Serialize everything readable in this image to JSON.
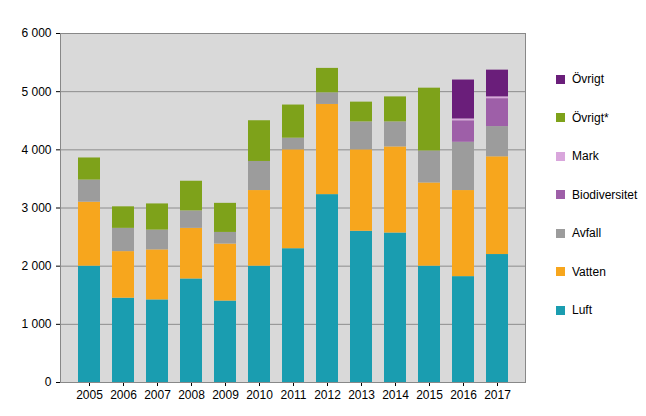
{
  "chart_data": {
    "type": "bar",
    "stacked": true,
    "grid": true,
    "legend": "right",
    "categories": [
      "2005",
      "2006",
      "2007",
      "2008",
      "2009",
      "2010",
      "2011",
      "2012",
      "2013",
      "2014",
      "2015",
      "2016",
      "2017"
    ],
    "series": [
      {
        "name": "Luft",
        "color": "#1a9db0",
        "values": [
          2000,
          1450,
          1420,
          1780,
          1400,
          2000,
          2300,
          3230,
          2600,
          2570,
          2000,
          1820,
          2200
        ]
      },
      {
        "name": "Vatten",
        "color": "#f7a61d",
        "values": [
          1100,
          800,
          860,
          870,
          980,
          1300,
          1700,
          1550,
          1400,
          1480,
          1430,
          1480,
          1680
        ]
      },
      {
        "name": "Avfall",
        "color": "#9c9c9c",
        "values": [
          380,
          400,
          340,
          300,
          200,
          500,
          200,
          200,
          480,
          430,
          550,
          830,
          520
        ]
      },
      {
        "name": "Biodiversitet",
        "color": "#9e5fa8",
        "values": [
          null,
          null,
          null,
          null,
          null,
          null,
          null,
          null,
          null,
          null,
          null,
          370,
          480
        ]
      },
      {
        "name": "Mark",
        "color": "#d9a6dc",
        "values": [
          null,
          null,
          null,
          null,
          null,
          null,
          null,
          null,
          null,
          null,
          null,
          30,
          30
        ]
      },
      {
        "name": "Övrigt*",
        "color": "#7ea21a",
        "values": [
          380,
          370,
          450,
          510,
          500,
          700,
          570,
          420,
          340,
          430,
          1080,
          null,
          null
        ]
      },
      {
        "name": "Övrigt",
        "color": "#6a1e7a",
        "values": [
          null,
          null,
          null,
          null,
          null,
          null,
          null,
          null,
          null,
          null,
          null,
          670,
          460
        ]
      }
    ],
    "ylim": [
      0,
      6000
    ],
    "yticks": [
      0,
      {
        "value": 1000,
        "label": "1 000"
      },
      {
        "value": 2000,
        "label": "2 000"
      },
      {
        "value": 3000,
        "label": "3 000"
      },
      {
        "value": 4000,
        "label": "4 000"
      },
      {
        "value": 5000,
        "label": "5 000"
      },
      {
        "value": 6000,
        "label": "6 000"
      }
    ]
  }
}
